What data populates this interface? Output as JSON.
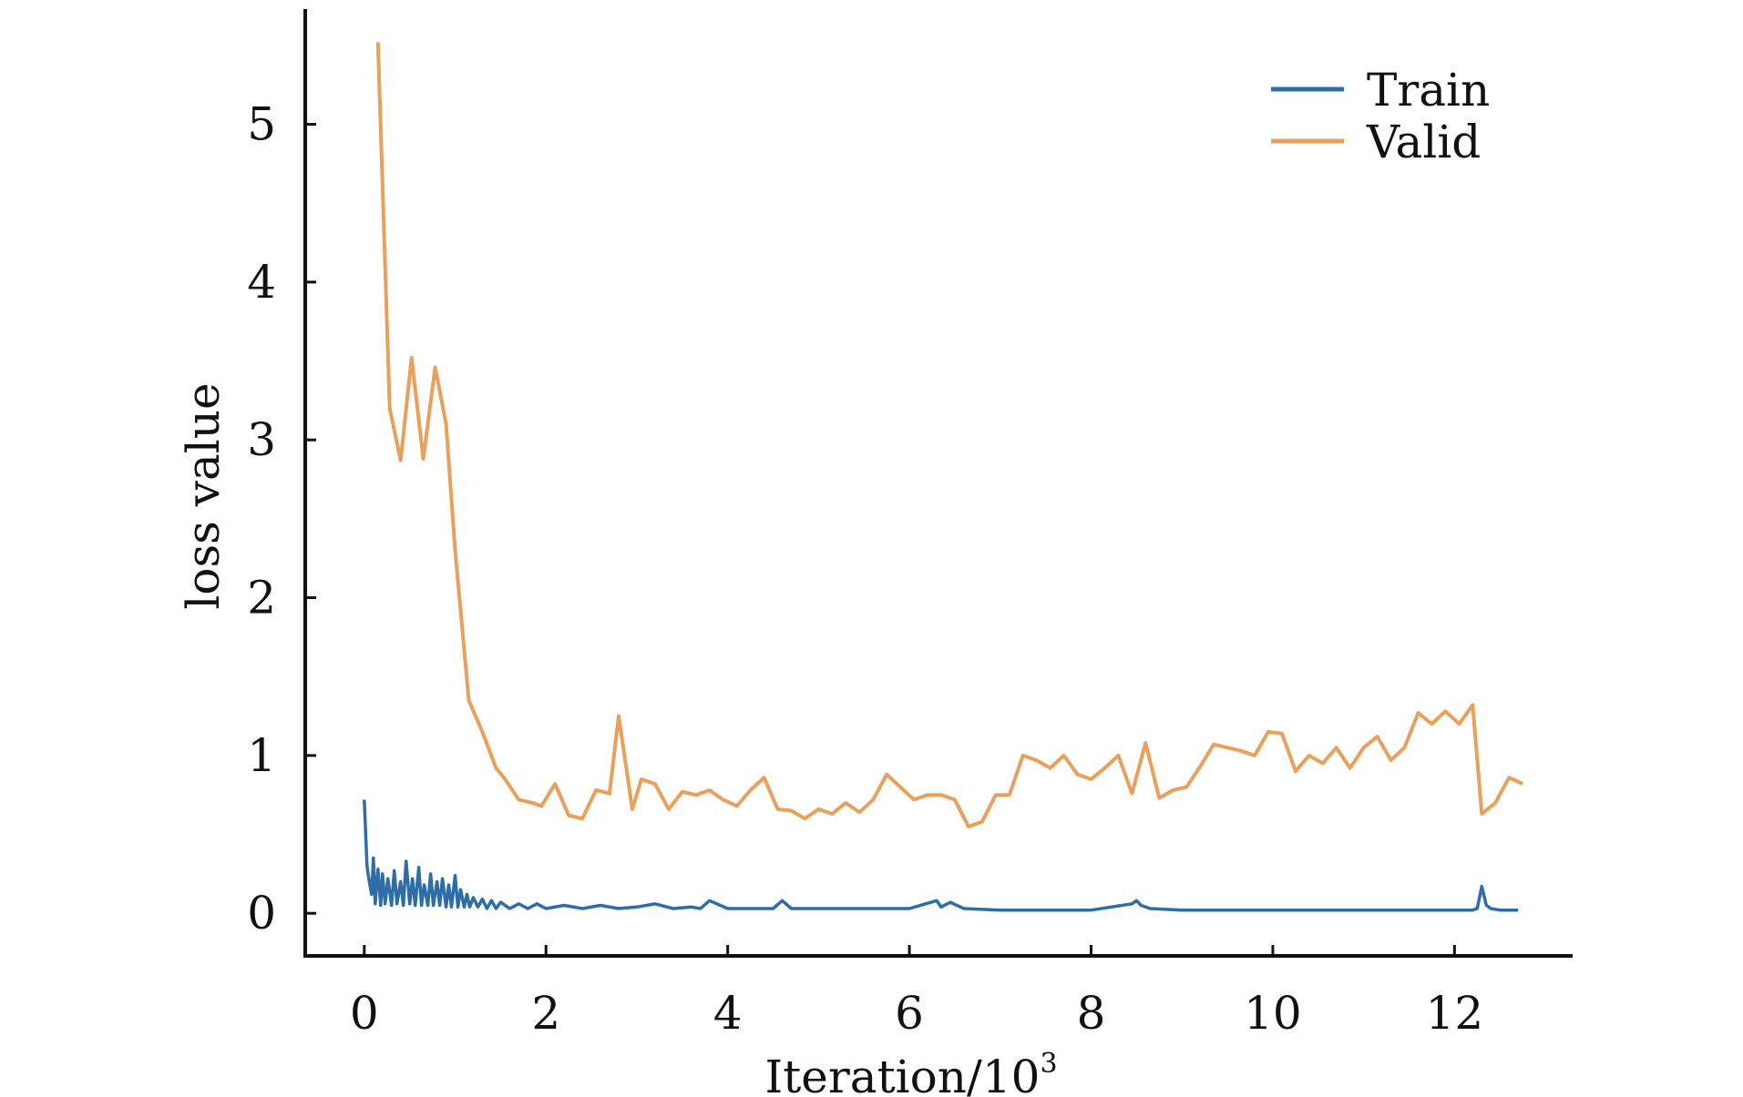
{
  "chart_data": {
    "type": "line",
    "title": "",
    "xlabel": "Iteration/10",
    "xlabel_superscript": "3",
    "ylabel": "loss value",
    "xlim": [
      -0.65,
      13.3
    ],
    "ylim": [
      -0.27,
      5.73
    ],
    "xticks": [
      0,
      2,
      4,
      6,
      8,
      10,
      12
    ],
    "yticks": [
      0,
      1,
      2,
      3,
      4,
      5
    ],
    "grid": false,
    "legend": "top-right",
    "series": [
      {
        "name": "Train",
        "color": "#2e6ea6",
        "x": [
          0.0,
          0.03,
          0.05,
          0.08,
          0.1,
          0.12,
          0.15,
          0.18,
          0.2,
          0.23,
          0.26,
          0.3,
          0.33,
          0.36,
          0.4,
          0.43,
          0.46,
          0.5,
          0.53,
          0.56,
          0.6,
          0.63,
          0.66,
          0.7,
          0.73,
          0.76,
          0.8,
          0.83,
          0.86,
          0.9,
          0.93,
          0.96,
          1.0,
          1.03,
          1.06,
          1.1,
          1.13,
          1.16,
          1.2,
          1.25,
          1.3,
          1.35,
          1.4,
          1.45,
          1.5,
          1.6,
          1.7,
          1.8,
          1.9,
          2.0,
          2.2,
          2.4,
          2.6,
          2.8,
          3.0,
          3.2,
          3.4,
          3.6,
          3.7,
          3.8,
          4.0,
          4.3,
          4.5,
          4.6,
          4.7,
          5.0,
          5.5,
          6.0,
          6.3,
          6.35,
          6.45,
          6.6,
          7.0,
          7.5,
          8.0,
          8.45,
          8.5,
          8.55,
          8.65,
          9.0,
          9.5,
          10.0,
          10.5,
          11.0,
          11.5,
          12.0,
          12.2,
          12.25,
          12.3,
          12.35,
          12.4,
          12.5,
          12.7
        ],
        "y": [
          0.72,
          0.3,
          0.22,
          0.12,
          0.35,
          0.06,
          0.28,
          0.05,
          0.25,
          0.06,
          0.22,
          0.05,
          0.27,
          0.06,
          0.2,
          0.05,
          0.33,
          0.06,
          0.22,
          0.05,
          0.29,
          0.05,
          0.18,
          0.05,
          0.25,
          0.05,
          0.2,
          0.05,
          0.22,
          0.04,
          0.18,
          0.04,
          0.24,
          0.04,
          0.15,
          0.04,
          0.12,
          0.04,
          0.1,
          0.04,
          0.09,
          0.03,
          0.08,
          0.03,
          0.07,
          0.03,
          0.06,
          0.03,
          0.06,
          0.03,
          0.05,
          0.03,
          0.05,
          0.03,
          0.04,
          0.06,
          0.03,
          0.04,
          0.03,
          0.08,
          0.03,
          0.03,
          0.03,
          0.08,
          0.03,
          0.03,
          0.03,
          0.03,
          0.08,
          0.04,
          0.07,
          0.03,
          0.02,
          0.02,
          0.02,
          0.06,
          0.08,
          0.05,
          0.03,
          0.02,
          0.02,
          0.02,
          0.02,
          0.02,
          0.02,
          0.02,
          0.02,
          0.03,
          0.17,
          0.05,
          0.03,
          0.02,
          0.02
        ]
      },
      {
        "name": "Valid",
        "color": "#e9a05a",
        "x": [
          0.15,
          0.28,
          0.4,
          0.52,
          0.65,
          0.78,
          0.9,
          1.0,
          1.15,
          1.3,
          1.45,
          1.55,
          1.7,
          1.85,
          1.95,
          2.1,
          2.25,
          2.4,
          2.55,
          2.7,
          2.8,
          2.95,
          3.05,
          3.2,
          3.35,
          3.5,
          3.65,
          3.8,
          3.95,
          4.1,
          4.25,
          4.4,
          4.55,
          4.7,
          4.85,
          5.0,
          5.15,
          5.3,
          5.45,
          5.6,
          5.75,
          5.9,
          6.05,
          6.2,
          6.35,
          6.5,
          6.65,
          6.8,
          6.95,
          7.1,
          7.25,
          7.4,
          7.55,
          7.7,
          7.85,
          8.0,
          8.15,
          8.3,
          8.45,
          8.6,
          8.75,
          8.9,
          9.05,
          9.2,
          9.35,
          9.5,
          9.65,
          9.8,
          9.95,
          10.1,
          10.25,
          10.4,
          10.55,
          10.7,
          10.85,
          11.0,
          11.15,
          11.3,
          11.45,
          11.6,
          11.75,
          11.9,
          12.05,
          12.2,
          12.3,
          12.45,
          12.6,
          12.75
        ],
        "y": [
          5.52,
          3.2,
          2.87,
          3.52,
          2.88,
          3.46,
          3.1,
          2.3,
          1.35,
          1.15,
          0.92,
          0.85,
          0.72,
          0.7,
          0.68,
          0.82,
          0.62,
          0.6,
          0.78,
          0.76,
          1.25,
          0.66,
          0.85,
          0.82,
          0.66,
          0.77,
          0.75,
          0.78,
          0.72,
          0.68,
          0.78,
          0.86,
          0.66,
          0.65,
          0.6,
          0.66,
          0.63,
          0.7,
          0.64,
          0.72,
          0.88,
          0.8,
          0.72,
          0.75,
          0.75,
          0.72,
          0.55,
          0.58,
          0.75,
          0.75,
          1.0,
          0.97,
          0.92,
          1.0,
          0.88,
          0.85,
          0.92,
          1.0,
          0.76,
          1.08,
          0.73,
          0.78,
          0.8,
          0.93,
          1.07,
          1.05,
          1.03,
          1.0,
          1.15,
          1.14,
          0.9,
          1.0,
          0.95,
          1.05,
          0.92,
          1.05,
          1.12,
          0.97,
          1.05,
          1.27,
          1.2,
          1.28,
          1.2,
          1.32,
          0.63,
          0.7,
          0.86,
          0.82
        ]
      }
    ]
  }
}
